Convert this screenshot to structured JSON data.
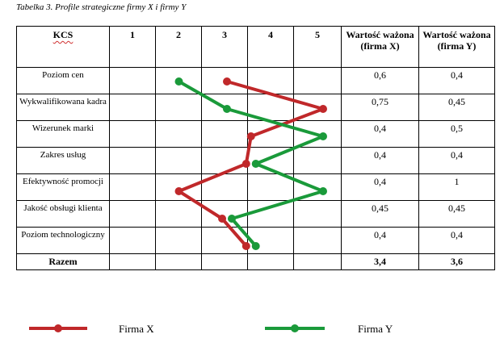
{
  "caption": "Tabelka 3. Profile strategiczne firmy X i firmy Y",
  "table": {
    "header": {
      "kcs": "KCS",
      "scale": [
        "1",
        "2",
        "3",
        "4",
        "5"
      ],
      "firm_x_weighted": "Wartość ważona (firma X)",
      "firm_y_weighted": "Wartość ważona (firma Y)"
    },
    "rows": [
      {
        "kcs": "Poziom cen",
        "x_value": "0,6",
        "y_value": "0,4"
      },
      {
        "kcs": "Wykwalifikowana kadra",
        "x_value": "0,75",
        "y_value": "0,45"
      },
      {
        "kcs": "Wizerunek marki",
        "x_value": "0,4",
        "y_value": "0,5"
      },
      {
        "kcs": "Zakres usług",
        "x_value": "0,4",
        "y_value": "0,4"
      },
      {
        "kcs": "Efektywność promocji",
        "x_value": "0,4",
        "y_value": "1"
      },
      {
        "kcs": "Jakość obsługi klienta",
        "x_value": "0,45",
        "y_value": "0,45"
      },
      {
        "kcs": "Poziom technologiczny",
        "x_value": "0,4",
        "y_value": "0,4"
      }
    ],
    "total": {
      "label": "Razem",
      "x_value": "3,4",
      "y_value": "3,6"
    }
  },
  "chart_data": {
    "type": "line",
    "x_scale": [
      1,
      5
    ],
    "categories": [
      "Poziom cen",
      "Wykwalifikowana kadra",
      "Wizerunek marki",
      "Zakres usług",
      "Efektywność promocji",
      "Jakość obsługi klienta",
      "Poziom technologiczny"
    ],
    "series": [
      {
        "name": "Firma X",
        "color": "#c0282a",
        "values": [
          3,
          5,
          3.5,
          3.4,
          2,
          2.9,
          3.4
        ]
      },
      {
        "name": "Firma Y",
        "color": "#1a9a3a",
        "values": [
          2,
          3,
          5,
          3.6,
          5,
          3.1,
          3.6
        ]
      }
    ],
    "legend": "bottom"
  },
  "legend": {
    "firm_x_label": "Firma X",
    "firm_y_label": "Firma Y"
  }
}
